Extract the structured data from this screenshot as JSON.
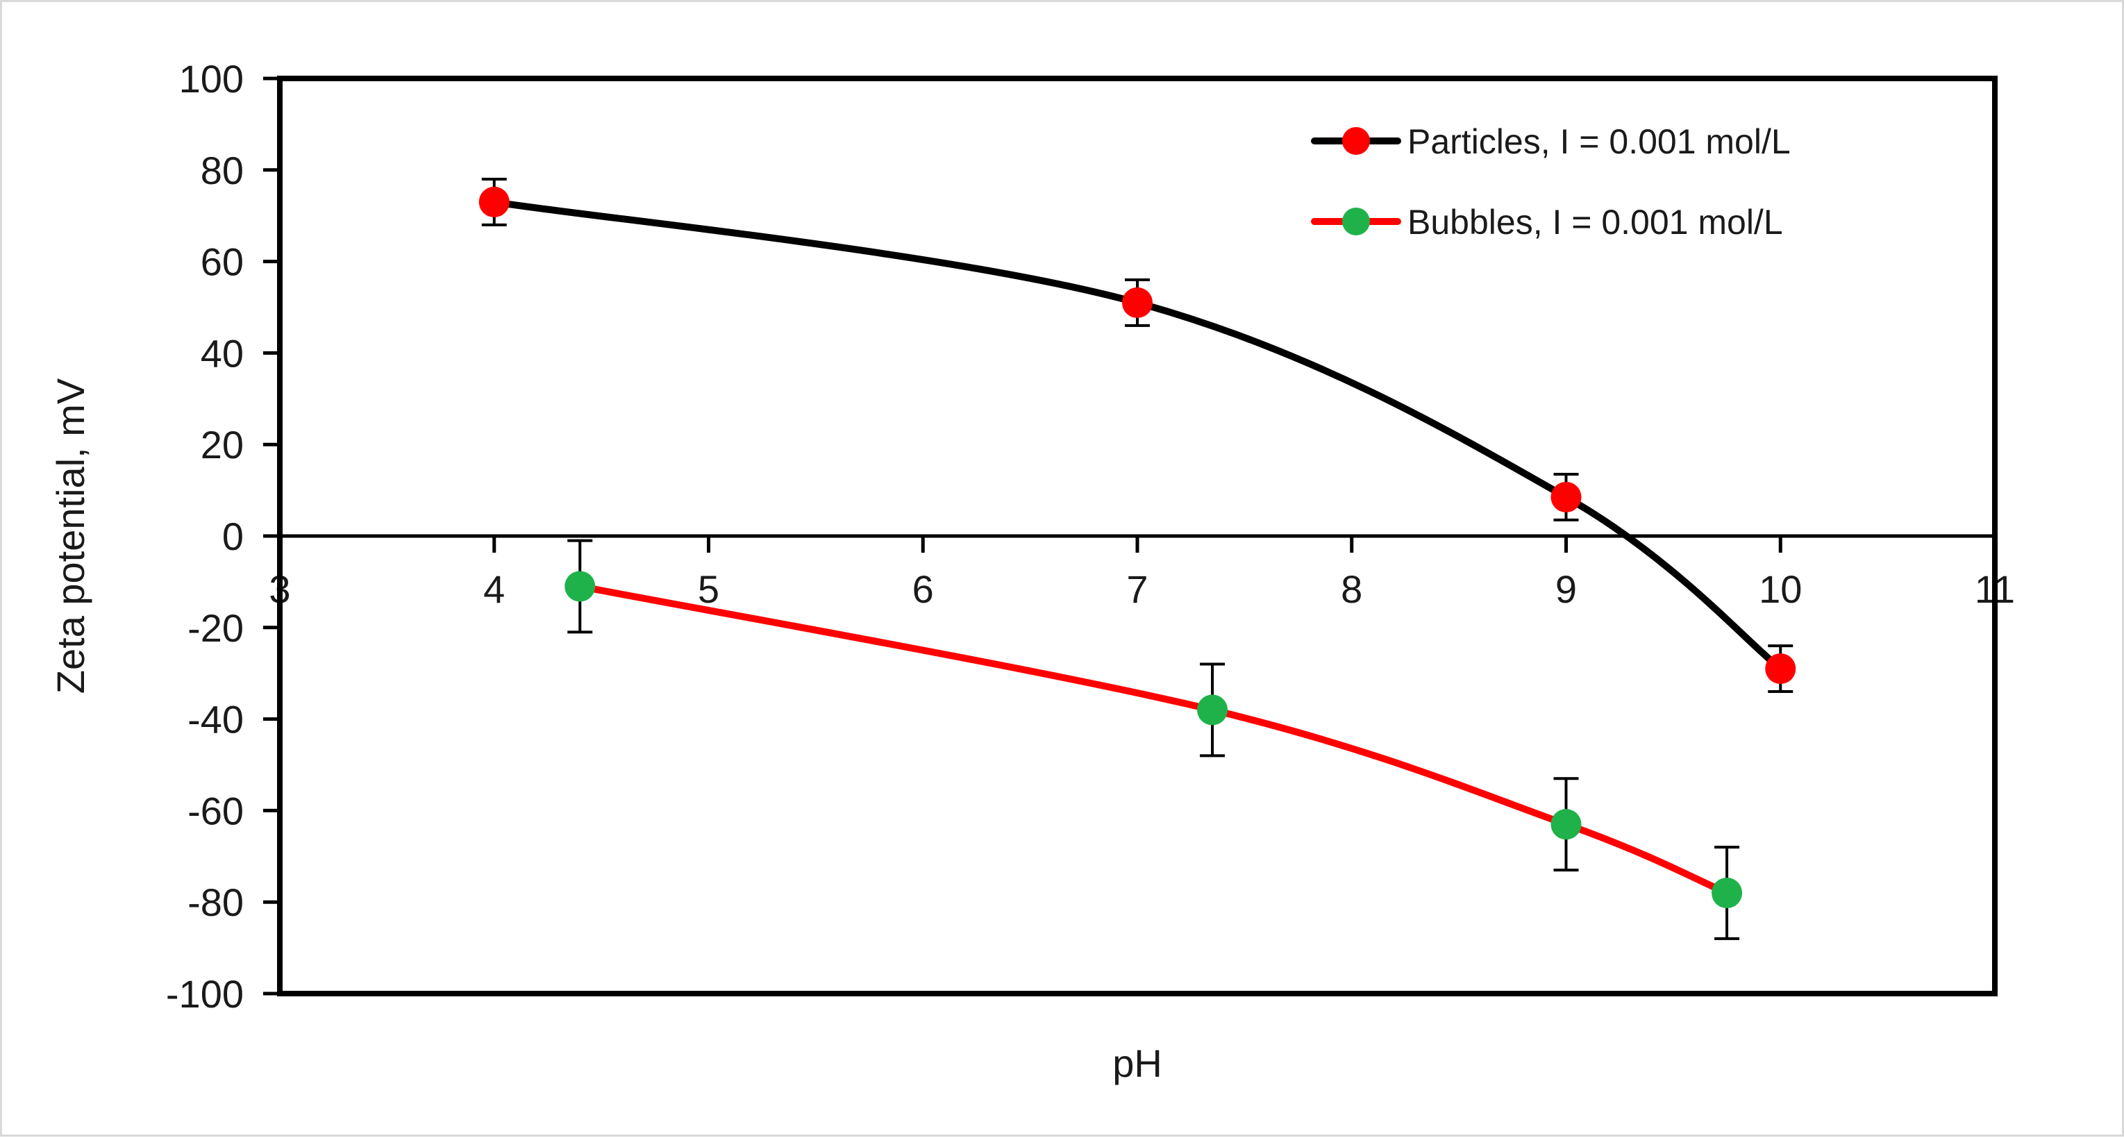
{
  "chart_data": {
    "type": "line",
    "title": "",
    "xlabel": "pH",
    "ylabel": "Zeta potential, mV",
    "xlim": [
      3,
      11
    ],
    "ylim": [
      -100,
      100
    ],
    "xticks": [
      "3",
      "4",
      "5",
      "6",
      "7",
      "8",
      "9",
      "10",
      "11"
    ],
    "yticks": [
      "100",
      "80",
      "60",
      "40",
      "20",
      "0",
      "-20",
      "-40",
      "-60",
      "-80",
      "-100"
    ],
    "grid": false,
    "legend_position": "top-right",
    "series": [
      {
        "name": "Particles, I = 0.001 mol/L",
        "line_color": "#000000",
        "marker_color": "#ff0000",
        "x": [
          4,
          7,
          9,
          10
        ],
        "y": [
          73,
          51,
          8.5,
          -29
        ],
        "error": [
          5,
          5,
          5,
          5
        ]
      },
      {
        "name": "Bubbles, I = 0.001 mol/L",
        "line_color": "#ff0000",
        "marker_color": "#1fb24a",
        "x": [
          4.4,
          7.35,
          9,
          9.75
        ],
        "y": [
          -11,
          -38,
          -63,
          -78
        ],
        "error": [
          10,
          10,
          10,
          10
        ]
      }
    ]
  }
}
